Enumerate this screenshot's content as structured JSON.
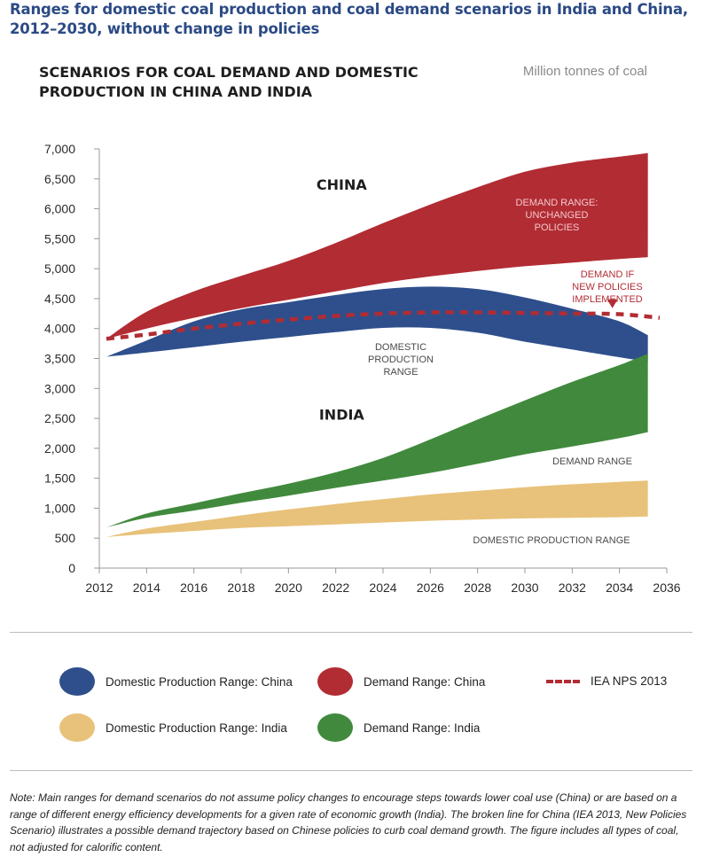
{
  "figure": {
    "title": "Ranges for domestic coal production and coal demand scenarios in India and China, 2012–2030, without change in policies",
    "note": "Note: Main ranges for demand scenarios do not assume policy changes to encourage steps towards lower coal use (China) or are based on a range of different energy efficiency developments for a given rate of economic growth (India). The broken line for China (IEA 2013, New Policies Scenario) illustrates a possible demand trajectory based on Chinese policies to curb coal demand growth. The figure includes all types of coal, not adjusted for calorific content."
  },
  "legend": {
    "items": [
      {
        "label": "Domestic Production Range: China",
        "color": "#2e4f8c",
        "kind": "ellipse"
      },
      {
        "label": "Demand Range: China",
        "color": "#b22c34",
        "kind": "ellipse"
      },
      {
        "label": "IEA NPS 2013",
        "color": "#b22c34",
        "kind": "dashed"
      },
      {
        "label": "Domestic Production Range: India",
        "color": "#e8c27a",
        "kind": "ellipse"
      },
      {
        "label": "Demand Range: India",
        "color": "#418a3d",
        "kind": "ellipse"
      }
    ]
  },
  "chart_data": {
    "type": "area",
    "title": "SCENARIOS FOR COAL DEMAND AND DOMESTIC PRODUCTION IN CHINA AND INDIA",
    "units": "Million tonnes of coal",
    "xlabel": "",
    "ylabel": "",
    "xlim": [
      2012,
      2036
    ],
    "ylim": [
      0,
      7000
    ],
    "x_ticks": [
      2012,
      2014,
      2016,
      2018,
      2020,
      2022,
      2024,
      2026,
      2028,
      2030,
      2032,
      2034,
      2036
    ],
    "y_ticks": [
      0,
      500,
      1000,
      1500,
      2000,
      2500,
      3000,
      3500,
      4000,
      4500,
      5000,
      5500,
      6000,
      6500,
      7000
    ],
    "y_tick_labels": [
      "0",
      "500",
      "1,000",
      "1,500",
      "2,000",
      "2,500",
      "3,000",
      "3,500",
      "4,000",
      "4,500",
      "5,000",
      "5,500",
      "6,000",
      "6,500",
      "7,000"
    ],
    "region_labels": [
      {
        "text": "CHINA",
        "x": 2023,
        "y": 6320
      },
      {
        "text": "INDIA",
        "x": 2023,
        "y": 2480
      }
    ],
    "series": [
      {
        "name": "Demand Range: China",
        "color": "#b22c34",
        "x": [
          2012.3,
          2014,
          2016,
          2018,
          2020,
          2022,
          2024,
          2026,
          2028,
          2030,
          2032,
          2034,
          2035.2
        ],
        "low": [
          3830,
          4000,
          4180,
          4340,
          4480,
          4620,
          4760,
          4870,
          4960,
          5040,
          5100,
          5160,
          5190
        ],
        "high": [
          3830,
          4280,
          4620,
          4880,
          5130,
          5430,
          5760,
          6070,
          6360,
          6620,
          6770,
          6870,
          6930
        ],
        "annotation": [
          "DEMAND RANGE:",
          "UNCHANGED",
          "POLICIES"
        ]
      },
      {
        "name": "Domestic Production Range: China",
        "color": "#2e4f8c",
        "x": [
          2012.3,
          2014,
          2016,
          2018,
          2020,
          2022,
          2024,
          2026,
          2028,
          2030,
          2032,
          2034,
          2035.2
        ],
        "low": [
          3530,
          3600,
          3690,
          3780,
          3860,
          3940,
          4010,
          4010,
          3930,
          3780,
          3650,
          3520,
          3450
        ],
        "high": [
          3530,
          3800,
          4120,
          4320,
          4440,
          4560,
          4660,
          4700,
          4660,
          4520,
          4330,
          4120,
          3890
        ],
        "annotation": [
          "DOMESTIC",
          "PRODUCTION",
          "RANGE"
        ]
      },
      {
        "name": "Demand Range: India",
        "color": "#418a3d",
        "x": [
          2012.3,
          2014,
          2016,
          2018,
          2020,
          2022,
          2024,
          2026,
          2028,
          2030,
          2032,
          2034,
          2035.2
        ],
        "low": [
          680,
          840,
          960,
          1090,
          1210,
          1340,
          1460,
          1590,
          1740,
          1900,
          2030,
          2170,
          2270
        ],
        "high": [
          680,
          910,
          1080,
          1250,
          1410,
          1600,
          1840,
          2150,
          2480,
          2800,
          3110,
          3390,
          3580
        ],
        "annotation": [
          "DEMAND RANGE"
        ]
      },
      {
        "name": "Domestic Production Range: India",
        "color": "#e8c27a",
        "x": [
          2012.3,
          2014,
          2016,
          2018,
          2020,
          2022,
          2024,
          2026,
          2028,
          2030,
          2032,
          2034,
          2035.2
        ],
        "low": [
          520,
          570,
          620,
          670,
          700,
          730,
          760,
          790,
          810,
          830,
          840,
          850,
          860
        ],
        "high": [
          520,
          660,
          770,
          880,
          980,
          1070,
          1150,
          1230,
          1290,
          1350,
          1400,
          1440,
          1460
        ],
        "annotation": [
          "DOMESTIC PRODUCTION RANGE"
        ]
      },
      {
        "name": "IEA NPS 2013",
        "color": "#b22c34",
        "style": "dashed",
        "x": [
          2012.3,
          2014,
          2016,
          2018,
          2020,
          2022,
          2024,
          2026,
          2028,
          2030,
          2032,
          2034,
          2035.7
        ],
        "y": [
          3830,
          3900,
          4000,
          4080,
          4150,
          4210,
          4250,
          4270,
          4270,
          4260,
          4250,
          4240,
          4180
        ],
        "annotation": [
          "DEMAND IF",
          "NEW POLICIES",
          "IMPLEMENTED"
        ]
      }
    ]
  }
}
